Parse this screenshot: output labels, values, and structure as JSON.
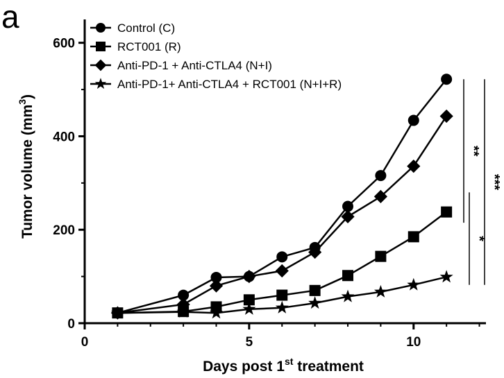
{
  "panel_label": "a",
  "chart_data": {
    "type": "line",
    "xlabel": {
      "prefix": "Days post 1",
      "sup": "st",
      "suffix": " treatment"
    },
    "ylabel": {
      "prefix": "Tumor volume (mm",
      "sup": "3",
      "suffix": ")"
    },
    "xlim": [
      0,
      12.2
    ],
    "ylim": [
      0,
      650
    ],
    "xticks": [
      0,
      5,
      10
    ],
    "yticks": [
      0,
      200,
      400,
      600
    ],
    "grid": false,
    "legend_position": "top-left",
    "series": [
      {
        "name": "Control (C)",
        "marker": "circle",
        "x": [
          1,
          3,
          4,
          5,
          6,
          7,
          8,
          9,
          10,
          11
        ],
        "y": [
          22,
          60,
          98,
          100,
          142,
          162,
          250,
          316,
          434,
          522
        ]
      },
      {
        "name": "RCT001 (R)",
        "marker": "square",
        "x": [
          1,
          3,
          4,
          5,
          6,
          7,
          8,
          9,
          10,
          11
        ],
        "y": [
          22,
          25,
          35,
          50,
          60,
          70,
          102,
          143,
          185,
          238
        ]
      },
      {
        "name": "Anti-PD-1 + Anti-CTLA4 (N+I)",
        "marker": "diamond",
        "x": [
          1,
          3,
          4,
          5,
          6,
          7,
          8,
          9,
          10,
          11
        ],
        "y": [
          22,
          40,
          80,
          100,
          112,
          152,
          228,
          271,
          336,
          443
        ]
      },
      {
        "name": "Anti-PD-1+ Anti-CTLA4 + RCT001 (N+I+R)",
        "marker": "star",
        "x": [
          1,
          3,
          4,
          5,
          6,
          7,
          8,
          9,
          10,
          11
        ],
        "y": [
          22,
          24,
          22,
          30,
          33,
          43,
          57,
          67,
          82,
          99
        ]
      }
    ],
    "significance": [
      {
        "label": "**",
        "y_from": 522,
        "y_to": 215
      },
      {
        "label": "*",
        "y_from": 280,
        "y_to": 82
      },
      {
        "label": "***",
        "y_from": 522,
        "y_to": 82
      }
    ]
  }
}
